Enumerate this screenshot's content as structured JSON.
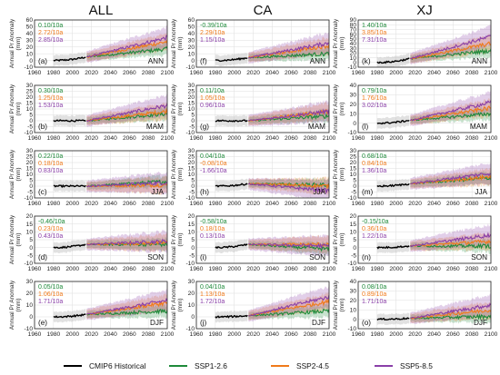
{
  "chart_data": {
    "type": "line",
    "column_titles": [
      "ALL",
      "CA",
      "XJ"
    ],
    "seasons": [
      "ANN",
      "MAM",
      "JJA",
      "SON",
      "DJF"
    ],
    "xlim": [
      1960,
      2100
    ],
    "xticks": [
      1960,
      1980,
      2000,
      2020,
      2040,
      2060,
      2080,
      2100
    ],
    "xtick_labels": [
      "1960",
      "1980",
      "2000",
      "2020",
      "2040",
      "2060",
      "2080",
      "2100"
    ],
    "ylabel_line1": "Annual Pr Anomaly",
    "ylabel_line2": "(mm)",
    "legend_position": "bottom",
    "series_styles": [
      {
        "name": "CMIP6 Historical",
        "color": "#000000"
      },
      {
        "name": "SSP1-2.6",
        "color": "#1e8a3a"
      },
      {
        "name": "SSP2-4.5",
        "color": "#f07a1a"
      },
      {
        "name": "SSP5-8.5",
        "color": "#8a3fa8"
      }
    ],
    "trend_colors": [
      "#1e8a3a",
      "#f07a1a",
      "#8a3fa8"
    ],
    "panels": [
      {
        "label": "(a)",
        "col": 0,
        "row": 0,
        "ylim": [
          -10,
          60
        ],
        "yticks": [
          -10,
          0,
          10,
          20,
          30,
          40,
          50,
          60
        ],
        "trends": [
          "0.10/10a",
          "2.72/10a",
          "2.85/10a"
        ],
        "hist_end": 5,
        "ssp_end": [
          17,
          28,
          34
        ]
      },
      {
        "label": "(b)",
        "col": 0,
        "row": 1,
        "ylim": [
          -10,
          30
        ],
        "yticks": [
          -10,
          -5,
          0,
          5,
          10,
          15,
          20,
          25,
          30
        ],
        "trends": [
          "0.30/10a",
          "1.25/10a",
          "1.53/10a"
        ],
        "hist_end": 0,
        "ssp_end": [
          6,
          8,
          13
        ]
      },
      {
        "label": "(c)",
        "col": 0,
        "row": 2,
        "ylim": [
          -10,
          30
        ],
        "yticks": [
          -10,
          -5,
          0,
          5,
          10,
          15,
          20,
          25,
          30
        ],
        "trends": [
          "0.22/10a",
          "0.18/10a",
          "0.83/10a"
        ],
        "hist_end": 0,
        "ssp_end": [
          4,
          1,
          3
        ]
      },
      {
        "label": "(d)",
        "col": 0,
        "row": 3,
        "ylim": [
          -10,
          20
        ],
        "yticks": [
          -10,
          -5,
          0,
          5,
          10,
          15,
          20
        ],
        "trends": [
          "-0.46/10a",
          "0.23/10a",
          "0.43/10a"
        ],
        "hist_end": 2,
        "ssp_end": [
          2,
          3,
          4
        ]
      },
      {
        "label": "(e)",
        "col": 0,
        "row": 4,
        "ylim": [
          -10,
          30
        ],
        "yticks": [
          -10,
          0,
          10,
          20,
          30
        ],
        "trends": [
          "0.05/10a",
          "1.06/10a",
          "1.71/10a"
        ],
        "hist_end": 2,
        "ssp_end": [
          5,
          12,
          14
        ]
      },
      {
        "label": "(f)",
        "col": 1,
        "row": 0,
        "ylim": [
          -10,
          60
        ],
        "yticks": [
          -10,
          0,
          10,
          20,
          30,
          40,
          50,
          60
        ],
        "trends": [
          "-0.39/10a",
          "2.29/10a",
          "1.15/10a"
        ],
        "hist_end": 4,
        "ssp_end": [
          10,
          22,
          26
        ]
      },
      {
        "label": "(g)",
        "col": 1,
        "row": 1,
        "ylim": [
          -10,
          30
        ],
        "yticks": [
          -10,
          -5,
          0,
          5,
          10,
          15,
          20,
          25,
          30
        ],
        "trends": [
          "0.11/10a",
          "1.05/10a",
          "0.96/10a"
        ],
        "hist_end": 0,
        "ssp_end": [
          4,
          8,
          8
        ]
      },
      {
        "label": "(h)",
        "col": 1,
        "row": 2,
        "ylim": [
          -10,
          30
        ],
        "yticks": [
          -10,
          -5,
          0,
          5,
          10,
          15,
          20,
          25,
          30
        ],
        "trends": [
          "0.04/10a",
          "-0.08/10a",
          "-1.66/10a"
        ],
        "hist_end": 2,
        "ssp_end": [
          1,
          0,
          -4
        ]
      },
      {
        "label": "(i)",
        "col": 1,
        "row": 3,
        "ylim": [
          -10,
          20
        ],
        "yticks": [
          -10,
          -5,
          0,
          5,
          10,
          15,
          20
        ],
        "trends": [
          "-0.58/10a",
          "0.18/10a",
          "0.13/10a"
        ],
        "hist_end": 2,
        "ssp_end": [
          -1,
          2,
          1
        ]
      },
      {
        "label": "(j)",
        "col": 1,
        "row": 4,
        "ylim": [
          -10,
          30
        ],
        "yticks": [
          -10,
          0,
          10,
          20,
          30
        ],
        "trends": [
          "0.04/10a",
          "1.13/10a",
          "1.72/10a"
        ],
        "hist_end": 1,
        "ssp_end": [
          5,
          13,
          17
        ]
      },
      {
        "label": "(k)",
        "col": 2,
        "row": 0,
        "ylim": [
          -10,
          90
        ],
        "yticks": [
          -10,
          0,
          10,
          20,
          30,
          40,
          50,
          60,
          70,
          80,
          90
        ],
        "trends": [
          "1.40/10a",
          "3.85/10a",
          "7.31/10a"
        ],
        "hist_end": 8,
        "ssp_end": [
          25,
          40,
          55
        ]
      },
      {
        "label": "(l)",
        "col": 2,
        "row": 1,
        "ylim": [
          -10,
          40
        ],
        "yticks": [
          -10,
          0,
          10,
          20,
          30,
          40
        ],
        "trends": [
          "0.79/10a",
          "1.76/10a",
          "3.02/10a"
        ],
        "hist_end": 3,
        "ssp_end": [
          10,
          16,
          22
        ]
      },
      {
        "label": "(m)",
        "col": 2,
        "row": 2,
        "ylim": [
          -10,
          30
        ],
        "yticks": [
          -10,
          -5,
          0,
          5,
          10,
          15,
          20,
          25,
          30
        ],
        "trends": [
          "0.68/10a",
          "0.84/10a",
          "1.36/10a"
        ],
        "hist_end": 2,
        "ssp_end": [
          7,
          8,
          11
        ]
      },
      {
        "label": "(n)",
        "col": 2,
        "row": 3,
        "ylim": [
          -10,
          20
        ],
        "yticks": [
          -10,
          -5,
          0,
          5,
          10,
          15,
          20
        ],
        "trends": [
          "-0.15/10a",
          "0.36/10a",
          "1.22/10a"
        ],
        "hist_end": 1,
        "ssp_end": [
          1,
          4,
          8
        ]
      },
      {
        "label": "(o)",
        "col": 2,
        "row": 4,
        "ylim": [
          -10,
          40
        ],
        "yticks": [
          -10,
          0,
          10,
          20,
          30,
          40
        ],
        "trends": [
          "0.08/10a",
          "0.89/10a",
          "1.71/10a"
        ],
        "hist_end": 1,
        "ssp_end": [
          3,
          10,
          15
        ]
      }
    ]
  }
}
